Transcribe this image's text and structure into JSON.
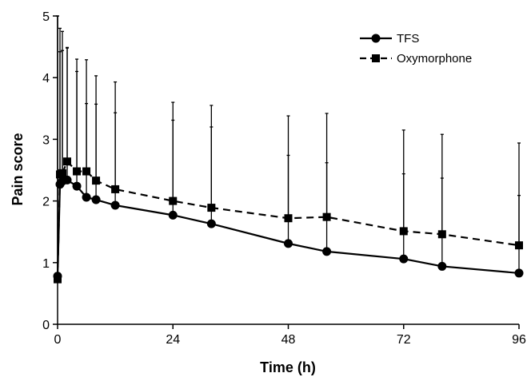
{
  "chart_data": {
    "type": "line",
    "xlabel": "Time (h)",
    "ylabel": "Pain score",
    "xlim": [
      0,
      96
    ],
    "ylim": [
      0,
      5
    ],
    "x_ticks": [
      0,
      24,
      48,
      72,
      96
    ],
    "y_ticks": [
      0,
      1,
      2,
      3,
      4,
      5
    ],
    "x_tick_labels": [
      "0",
      "24",
      "48",
      "72",
      "96"
    ],
    "y_tick_labels": [
      "0",
      "1",
      "2",
      "3",
      "4",
      "5"
    ],
    "grid": false,
    "legend_position": "top-right",
    "series": [
      {
        "name": "TFS",
        "marker": "circle",
        "line_style": "solid",
        "color": "#000000",
        "x": [
          0,
          0.5,
          1,
          2,
          4,
          6,
          8,
          12,
          24,
          32,
          48,
          56,
          72,
          80,
          96
        ],
        "y": [
          0.78,
          2.27,
          2.32,
          2.34,
          2.24,
          2.06,
          2.02,
          1.93,
          1.77,
          1.63,
          1.31,
          1.18,
          1.06,
          0.94,
          0.83
        ],
        "error_upper": [
          5.0,
          4.42,
          4.44,
          4.48,
          4.1,
          3.58,
          3.57,
          3.43,
          3.31,
          3.2,
          2.74,
          2.62,
          2.44,
          2.37,
          2.09
        ]
      },
      {
        "name": "Oxymorphone",
        "marker": "square",
        "line_style": "dashed",
        "color": "#000000",
        "x": [
          0,
          0.5,
          1,
          2,
          4,
          6,
          8,
          12,
          24,
          32,
          48,
          56,
          72,
          80,
          96
        ],
        "y": [
          0.73,
          2.43,
          2.45,
          2.64,
          2.48,
          2.48,
          2.33,
          2.19,
          2.0,
          1.89,
          1.72,
          1.74,
          1.51,
          1.46,
          1.28
        ],
        "error_upper": [
          5.0,
          4.8,
          4.75,
          4.49,
          4.3,
          4.29,
          4.03,
          3.93,
          3.6,
          3.55,
          3.38,
          3.42,
          3.15,
          3.08,
          2.94
        ]
      }
    ]
  }
}
